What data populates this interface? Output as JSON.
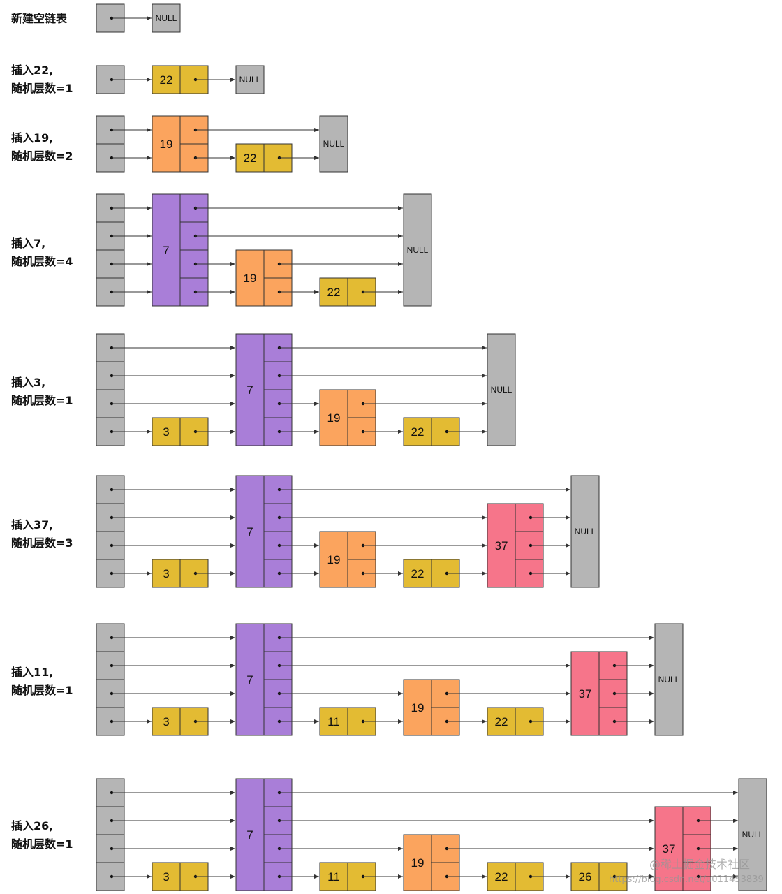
{
  "steps": [
    {
      "label_line1": "新建空链表",
      "label_line2": "",
      "nodes": []
    },
    {
      "label_line1": "插入22,",
      "label_line2": "随机层数=1",
      "nodes": [
        {
          "value": 22,
          "levels": 1
        }
      ]
    },
    {
      "label_line1": "插入19,",
      "label_line2": "随机层数=2",
      "nodes": [
        {
          "value": 19,
          "levels": 2
        },
        {
          "value": 22,
          "levels": 1
        }
      ]
    },
    {
      "label_line1": "插入7,",
      "label_line2": "随机层数=4",
      "nodes": [
        {
          "value": 7,
          "levels": 4
        },
        {
          "value": 19,
          "levels": 2
        },
        {
          "value": 22,
          "levels": 1
        }
      ]
    },
    {
      "label_line1": "插入3,",
      "label_line2": "随机层数=1",
      "nodes": [
        {
          "value": 3,
          "levels": 1
        },
        {
          "value": 7,
          "levels": 4
        },
        {
          "value": 19,
          "levels": 2
        },
        {
          "value": 22,
          "levels": 1
        }
      ]
    },
    {
      "label_line1": "插入37,",
      "label_line2": "随机层数=3",
      "nodes": [
        {
          "value": 3,
          "levels": 1
        },
        {
          "value": 7,
          "levels": 4
        },
        {
          "value": 19,
          "levels": 2
        },
        {
          "value": 22,
          "levels": 1
        },
        {
          "value": 37,
          "levels": 3
        }
      ]
    },
    {
      "label_line1": "插入11,",
      "label_line2": "随机层数=1",
      "nodes": [
        {
          "value": 3,
          "levels": 1
        },
        {
          "value": 7,
          "levels": 4
        },
        {
          "value": 11,
          "levels": 1
        },
        {
          "value": 19,
          "levels": 2
        },
        {
          "value": 22,
          "levels": 1
        },
        {
          "value": 37,
          "levels": 3
        }
      ]
    },
    {
      "label_line1": "插入26,",
      "label_line2": "随机层数=1",
      "nodes": [
        {
          "value": 3,
          "levels": 1
        },
        {
          "value": 7,
          "levels": 4
        },
        {
          "value": 11,
          "levels": 1
        },
        {
          "value": 19,
          "levels": 2
        },
        {
          "value": 22,
          "levels": 1
        },
        {
          "value": 26,
          "levels": 1
        },
        {
          "value": 37,
          "levels": 3
        }
      ]
    }
  ],
  "null_label": "NULL",
  "colors": {
    "head": "#b5b5b5",
    "null": "#b5b5b5",
    "level1": "#e3bb33",
    "level2": "#fba45e",
    "level3": "#f6758a",
    "level4": "#a97ed8",
    "stroke": "#333333"
  },
  "watermark": {
    "line1": "@稀土掘金技术社区",
    "line2": "https://blog.csdn.net/u011453839"
  }
}
